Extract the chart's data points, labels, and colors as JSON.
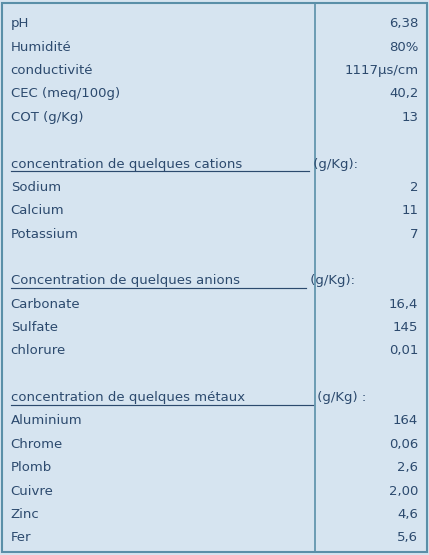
{
  "background_color": "#d6e4f0",
  "border_color": "#5a8fa8",
  "text_color": "#2c4a6e",
  "font_size": 9.5,
  "rows": [
    {
      "label": "pH",
      "value": "6,38",
      "is_header": false
    },
    {
      "label": "Humidité",
      "value": "80%",
      "is_header": false
    },
    {
      "label": "conductivité",
      "value": "1117μs/cm",
      "is_header": false
    },
    {
      "label": "CEC (meq/100g)",
      "value": "40,2",
      "is_header": false
    },
    {
      "label": "COT (g/Kg)",
      "value": "13",
      "is_header": false
    },
    {
      "label": "",
      "value": "",
      "is_header": false
    },
    {
      "label": "concentration de quelques cations",
      "label2": " (g/Kg):",
      "value": "",
      "is_header": true
    },
    {
      "label": "Sodium",
      "value": "2",
      "is_header": false
    },
    {
      "label": "Calcium",
      "value": "11",
      "is_header": false
    },
    {
      "label": "Potassium",
      "value": "7",
      "is_header": false
    },
    {
      "label": "",
      "value": "",
      "is_header": false
    },
    {
      "label": "Concentration de quelques anions",
      "label2": " (g/Kg):",
      "value": "",
      "is_header": true
    },
    {
      "label": "Carbonate",
      "value": "16,4",
      "is_header": false
    },
    {
      "label": "Sulfate",
      "value": "145",
      "is_header": false
    },
    {
      "label": "chlorure",
      "value": "0,01",
      "is_header": false
    },
    {
      "label": "",
      "value": "",
      "is_header": false
    },
    {
      "label": "concentration de quelques métaux",
      "label2": " (g/Kg) :",
      "value": "",
      "is_header": true
    },
    {
      "label": "Aluminium",
      "value": "164",
      "is_header": false
    },
    {
      "label": "Chrome",
      "value": "0,06",
      "is_header": false
    },
    {
      "label": "Plomb",
      "value": "2,6",
      "is_header": false
    },
    {
      "label": "Cuivre",
      "value": "2,00",
      "is_header": false
    },
    {
      "label": "Zinc",
      "value": "4,6",
      "is_header": false
    },
    {
      "label": "Fer",
      "value": "5,6",
      "is_header": false
    }
  ]
}
